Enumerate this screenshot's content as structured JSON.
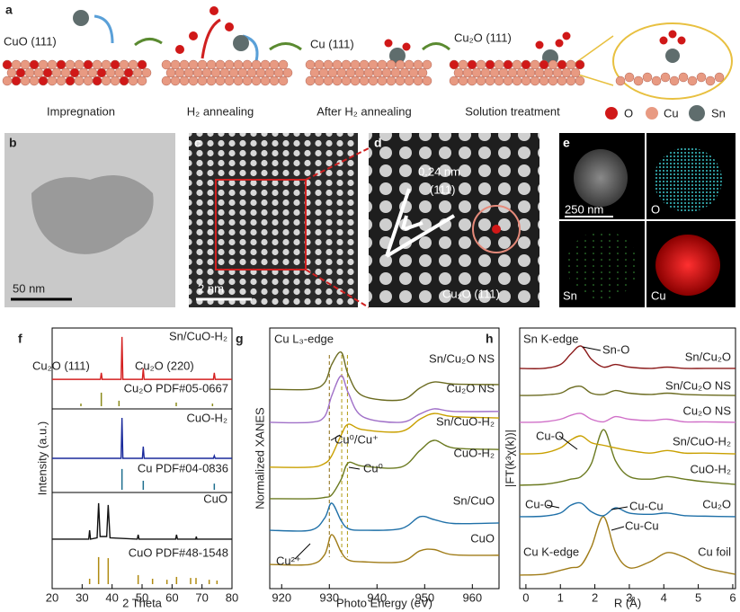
{
  "panel_a": {
    "label": "a",
    "stages": [
      "CuO (111)",
      "Cu (111)",
      "Cu₂O (111)"
    ],
    "steps": [
      "Impregnation",
      "H₂ annealing",
      "After H₂ annealing",
      "Solution treatment"
    ],
    "legend": [
      "O",
      "Cu",
      "Sn"
    ]
  },
  "panel_b": {
    "label": "b",
    "scale": "50 nm"
  },
  "panel_c": {
    "label": "c",
    "scale": "2 nm"
  },
  "panel_d": {
    "label": "d",
    "spacing": "0.24 nm",
    "plane": "(111)",
    "phase": "Cu₂O (111)"
  },
  "panel_e": {
    "label": "e",
    "scale": "250 nm",
    "maps": [
      "O",
      "Sn",
      "Cu"
    ]
  },
  "chart_data": [
    {
      "type": "line",
      "label": "f",
      "xlabel": "2 Theta",
      "ylabel": "Intensity (a.u.)",
      "xlim": [
        20,
        80
      ],
      "xticks": [
        20,
        30,
        40,
        50,
        60,
        70,
        80
      ],
      "ylim": [
        0,
        10
      ],
      "series": [
        {
          "name": "Sn/CuO-H₂",
          "color": "#d42020",
          "x": [
            20,
            36.1,
            36.4,
            36.7,
            43.0,
            43.3,
            43.6,
            50.1,
            50.4,
            50.7,
            73.8,
            74.1,
            74.4,
            80
          ],
          "values": [
            8.03,
            8.03,
            8.28,
            8.03,
            8.03,
            9.66,
            8.03,
            8.03,
            8.45,
            8.03,
            8.03,
            8.28,
            8.03,
            8.03
          ]
        },
        {
          "name": "CuO-H₂",
          "color": "#1a2a9c",
          "x": [
            20,
            43.0,
            43.3,
            43.6,
            50.1,
            50.4,
            50.7,
            73.8,
            74.1,
            74.4,
            80
          ],
          "values": [
            5.0,
            5.0,
            6.55,
            5.0,
            5.0,
            5.45,
            5.0,
            5.0,
            5.1,
            5.0,
            5.0
          ]
        },
        {
          "name": "CuO",
          "color": "#111111",
          "x": [
            20,
            32.2,
            32.5,
            32.8,
            35.0,
            35.5,
            36.0,
            38.2,
            38.7,
            39.3,
            48.4,
            48.7,
            49.0,
            61.2,
            61.5,
            61.8,
            67.9,
            68.1,
            68.3,
            80
          ],
          "values": [
            1.9,
            1.9,
            2.24,
            1.9,
            1.95,
            3.28,
            2.0,
            2.0,
            3.21,
            1.95,
            1.9,
            2.07,
            1.9,
            1.9,
            2.07,
            1.9,
            1.9,
            2.0,
            1.9,
            1.9
          ]
        }
      ],
      "references": [
        {
          "name": "Cu₂O PDF#05-0667",
          "color": "#8a8a1a",
          "x": [
            29.6,
            36.4,
            42.3,
            61.4,
            73.5
          ],
          "values": [
            7.1,
            7.52,
            7.21,
            7.14,
            7.1
          ]
        },
        {
          "name": "Cu PDF#04-0836",
          "color": "#1f6f8f",
          "x": [
            43.3,
            50.4,
            74.1
          ],
          "values": [
            4.59,
            4.14,
            4.03
          ]
        },
        {
          "name": "CuO PDF#48-1548",
          "color": "#b08a10",
          "x": [
            32.5,
            35.5,
            38.7,
            48.7,
            53.5,
            58.3,
            61.5,
            66.2,
            68,
            72.4,
            75
          ],
          "values": [
            0.38,
            1.21,
            1.17,
            0.52,
            0.38,
            0.34,
            0.45,
            0.41,
            0.41,
            0.34,
            0.31
          ]
        }
      ],
      "annotations": [
        "Cu₂O (111)",
        "Cu₂O (220)"
      ]
    },
    {
      "type": "line",
      "label": "g",
      "xlabel": "Photo Energy (eV)",
      "ylabel": "Normalized XANES",
      "xlim": [
        917.5,
        965.6
      ],
      "xticks": [
        920,
        930,
        940,
        950,
        960
      ],
      "ylim": [
        0,
        10
      ],
      "series": [
        {
          "name": "CuO",
          "color": "#a07c18",
          "x": [
            917.5,
            926,
            929,
            930.5,
            932.5,
            934,
            937,
            945,
            949,
            952,
            956,
            965.6
          ],
          "values": [
            0.93,
            0.93,
            1.3,
            2.07,
            1.4,
            1.1,
            1.03,
            1.03,
            1.45,
            1.5,
            1.3,
            1.28
          ]
        },
        {
          "name": "Sn/CuO",
          "color": "#1f70a8",
          "x": [
            917.5,
            926,
            929,
            930.5,
            932.5,
            934,
            937,
            945,
            949,
            952,
            956,
            965.6
          ],
          "values": [
            2.24,
            2.24,
            2.7,
            3.28,
            2.6,
            2.3,
            2.24,
            2.3,
            2.76,
            2.65,
            2.5,
            2.52
          ]
        },
        {
          "name": "CuO-H₂",
          "color": "#6b7a20",
          "x": [
            917.5,
            926,
            929,
            930.5,
            932.5,
            934,
            937,
            945,
            949,
            952,
            956,
            965.6
          ],
          "values": [
            3.45,
            3.45,
            3.5,
            3.6,
            4.2,
            4.83,
            4.7,
            4.66,
            5.3,
            5.69,
            5.4,
            5.34
          ]
        },
        {
          "name": "Sn/CuO-H₂",
          "color": "#c9a000",
          "x": [
            917.5,
            926,
            929,
            930.5,
            932.5,
            934,
            937,
            945,
            949,
            952,
            956,
            965.6
          ],
          "values": [
            4.66,
            4.66,
            4.8,
            5.1,
            5.9,
            6.31,
            6.1,
            6.03,
            6.5,
            6.72,
            6.6,
            6.55
          ]
        },
        {
          "name": "Cu₂O NS",
          "color": "#a070c8",
          "x": [
            917.5,
            926,
            929,
            930.5,
            932.5,
            934,
            937,
            945,
            949,
            952,
            956,
            965.6
          ],
          "values": [
            6.38,
            6.38,
            6.6,
            7.4,
            8.17,
            7.5,
            6.6,
            6.38,
            6.7,
            6.9,
            6.8,
            6.8
          ]
        },
        {
          "name": "Sn/Cu₂O NS",
          "color": "#6b6b20",
          "x": [
            917.5,
            926,
            929,
            930.5,
            932.5,
            934,
            937,
            945,
            949,
            952,
            956,
            965.6
          ],
          "values": [
            7.65,
            7.65,
            7.9,
            8.6,
            9.07,
            8.2,
            7.4,
            7.24,
            7.7,
            7.93,
            7.85,
            7.83
          ]
        }
      ],
      "reference_lines": [
        930,
        932.6,
        933.8
      ],
      "annotations": [
        "Cu L₃-edge",
        "Cu⁰/Cu⁺",
        "Cu⁰",
        "Cu²⁺"
      ]
    },
    {
      "type": "line",
      "label": "h",
      "xlabel": "R (Å)",
      "ylabel": "|FT(k³χ(k))|",
      "xlim": [
        -0.18,
        6.08
      ],
      "xticks": [
        0,
        1,
        2,
        3,
        4,
        5,
        6
      ],
      "ylim": [
        0,
        10
      ],
      "series": [
        {
          "name": "Cu foil",
          "color": "#a07c18",
          "x": [
            -0.18,
            0.5,
            1.0,
            1.3,
            1.6,
            1.9,
            2.25,
            2.6,
            3.0,
            3.6,
            4.1,
            4.6,
            5.2,
            6.08
          ],
          "values": [
            0.52,
            0.55,
            0.7,
            0.8,
            0.9,
            1.6,
            2.76,
            1.4,
            0.8,
            1.03,
            1.38,
            1.2,
            0.8,
            0.55
          ]
        },
        {
          "name": "Cu₂O",
          "color": "#1f70a8",
          "x": [
            -0.18,
            0.5,
            1.0,
            1.3,
            1.6,
            1.9,
            2.25,
            2.6,
            3.0,
            3.6,
            4.1,
            4.6,
            5.2,
            6.08
          ],
          "values": [
            2.76,
            2.78,
            2.9,
            3.2,
            3.28,
            2.95,
            2.8,
            3.1,
            2.9,
            2.85,
            2.9,
            2.8,
            2.78,
            2.76
          ]
        },
        {
          "name": "CuO-H₂",
          "color": "#6b7a20",
          "x": [
            -0.18,
            0.5,
            1.0,
            1.3,
            1.6,
            1.9,
            2.25,
            2.6,
            3.0,
            3.6,
            4.1,
            4.6,
            5.2,
            6.08
          ],
          "values": [
            3.97,
            4.0,
            4.1,
            4.2,
            4.3,
            4.8,
            6.1,
            4.9,
            4.3,
            4.2,
            4.3,
            4.2,
            4.1,
            4.0
          ]
        },
        {
          "name": "Sn/CuO-H₂",
          "color": "#c9a000",
          "x": [
            -0.18,
            0.5,
            1.0,
            1.3,
            1.6,
            1.9,
            2.25,
            2.6,
            3.0,
            3.6,
            4.1,
            4.6,
            5.2,
            6.08
          ],
          "values": [
            5.17,
            5.2,
            5.4,
            5.7,
            5.86,
            5.6,
            5.5,
            5.4,
            5.3,
            5.2,
            5.3,
            5.2,
            5.2,
            5.17
          ]
        },
        {
          "name": "Cu₂O NS",
          "color": "#d070c8",
          "x": [
            -0.18,
            0.5,
            1.0,
            1.3,
            1.6,
            1.9,
            2.25,
            2.6,
            3.0,
            3.6,
            4.1,
            4.6,
            5.2,
            6.08
          ],
          "values": [
            6.38,
            6.4,
            6.5,
            6.65,
            6.72,
            6.5,
            6.4,
            6.6,
            6.5,
            6.45,
            6.5,
            6.4,
            6.4,
            6.38
          ]
        },
        {
          "name": "Sn/Cu₂O NS",
          "color": "#6b6b20",
          "x": [
            -0.18,
            0.5,
            1.0,
            1.3,
            1.6,
            1.9,
            2.25,
            2.6,
            3.0,
            3.6,
            4.1,
            4.6,
            5.2,
            6.08
          ],
          "values": [
            7.41,
            7.43,
            7.5,
            7.7,
            7.76,
            7.5,
            7.45,
            7.6,
            7.5,
            7.45,
            7.5,
            7.45,
            7.43,
            7.41
          ]
        },
        {
          "name": "Sn/Cu₂O",
          "color": "#8b1a1a",
          "x": [
            -0.18,
            0.5,
            1.0,
            1.3,
            1.6,
            1.9,
            2.25,
            2.6,
            3.0,
            3.6,
            4.1,
            4.6,
            5.2,
            6.08
          ],
          "values": [
            8.45,
            8.45,
            8.6,
            9.0,
            9.31,
            8.8,
            8.5,
            8.6,
            8.5,
            8.45,
            8.5,
            8.45,
            8.45,
            8.45
          ]
        }
      ],
      "annotations": [
        "Sn K-edge",
        "Sn-O",
        "Cu-O",
        "Cu-O",
        "Cu-Cu",
        "Cu-Cu",
        "Cu K-edge"
      ]
    }
  ]
}
